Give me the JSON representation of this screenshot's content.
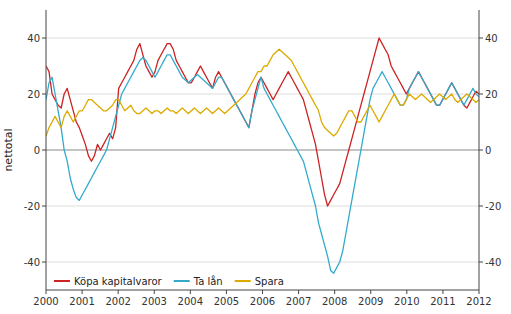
{
  "chart_data": {
    "type": "line",
    "ylabel": "nettotal",
    "xlim": [
      2000,
      2012
    ],
    "xticks": [
      2000,
      2001,
      2002,
      2003,
      2004,
      2005,
      2006,
      2007,
      2008,
      2009,
      2010,
      2011,
      2012
    ],
    "ylim": [
      -50,
      50
    ],
    "yticks": [
      -40,
      -20,
      0,
      20,
      40
    ],
    "y2lim": [
      -50,
      50
    ],
    "y2ticks": [
      -40,
      -20,
      0,
      20,
      40
    ],
    "grid": true,
    "legend": "lower left",
    "x": [
      2000,
      2000.0839,
      2000.1678,
      2000.2517,
      2000.3357,
      2000.4196,
      2000.5035,
      2000.5874,
      2000.6713,
      2000.7552,
      2000.8392,
      2000.9231,
      2001.007,
      2001.0909,
      2001.1748,
      2001.2587,
      2001.3427,
      2001.4266,
      2001.5105,
      2001.5944,
      2001.6783,
      2001.7622,
      2001.8462,
      2001.9301,
      2002.014,
      2002.0979,
      2002.1818,
      2002.2657,
      2002.3497,
      2002.4336,
      2002.5175,
      2002.6014,
      2002.6853,
      2002.7692,
      2002.8531,
      2002.9371,
      2003.021,
      2003.1049,
      2003.1888,
      2003.2727,
      2003.3566,
      2003.4406,
      2003.5245,
      2003.6084,
      2003.6923,
      2003.7762,
      2003.8601,
      2003.9441,
      2004.028,
      2004.1119,
      2004.1958,
      2004.2797,
      2004.3636,
      2004.4476,
      2004.5315,
      2004.6154,
      2004.6993,
      2004.7832,
      2004.8671,
      2004.951,
      2005.035,
      2005.1189,
      2005.2028,
      2005.2867,
      2005.3706,
      2005.4545,
      2005.5385,
      2005.6224,
      2005.7063,
      2005.7902,
      2005.8741,
      2005.958,
      2006.042,
      2006.1259,
      2006.2098,
      2006.2937,
      2006.3776,
      2006.4615,
      2006.5455,
      2006.6294,
      2006.7133,
      2006.7972,
      2006.8811,
      2006.965,
      2007.049,
      2007.1329,
      2007.2168,
      2007.3007,
      2007.3846,
      2007.4685,
      2007.5524,
      2007.6364,
      2007.7203,
      2007.8042,
      2007.8881,
      2007.972,
      2008.0559,
      2008.1399,
      2008.2238,
      2008.3077,
      2008.3916,
      2008.4755,
      2008.5594,
      2008.6434,
      2008.7273,
      2008.8112,
      2008.8951,
      2008.979,
      2009.0629,
      2009.1469,
      2009.2308,
      2009.3147,
      2009.3986,
      2009.4825,
      2009.5664,
      2009.6503,
      2009.7343,
      2009.8182,
      2009.9021,
      2009.986,
      2010.0699,
      2010.1538,
      2010.2378,
      2010.3217,
      2010.4056,
      2010.4895,
      2010.5734,
      2010.6573,
      2010.7413,
      2010.8252,
      2010.9091,
      2010.993,
      2011.0769,
      2011.1608,
      2011.2448,
      2011.3287,
      2011.4126,
      2011.4965,
      2011.5804,
      2011.6643,
      2011.7483,
      2011.8322,
      2011.9161,
      2012
    ],
    "series": [
      {
        "name": "Köpa kapitalvaror",
        "color": "#cc2222",
        "values": [
          30,
          28,
          20,
          18,
          16,
          15,
          20,
          22,
          18,
          14,
          10,
          8,
          5,
          2,
          -2,
          -4,
          -2,
          2,
          0,
          2,
          4,
          6,
          4,
          8,
          22,
          24,
          26,
          28,
          30,
          32,
          36,
          38,
          34,
          30,
          28,
          26,
          28,
          32,
          34,
          36,
          38,
          38,
          36,
          32,
          30,
          28,
          26,
          24,
          24,
          26,
          28,
          30,
          28,
          26,
          24,
          22,
          26,
          28,
          26,
          24,
          22,
          20,
          18,
          16,
          14,
          12,
          10,
          8,
          14,
          20,
          24,
          26,
          24,
          22,
          20,
          18,
          20,
          22,
          24,
          26,
          28,
          26,
          24,
          22,
          20,
          18,
          14,
          10,
          6,
          2,
          -4,
          -10,
          -16,
          -20,
          -18,
          -16,
          -14,
          -12,
          -8,
          -4,
          0,
          4,
          8,
          12,
          16,
          20,
          24,
          28,
          32,
          36,
          40,
          38,
          36,
          34,
          30,
          28,
          26,
          24,
          22,
          20,
          22,
          24,
          26,
          28,
          26,
          24,
          22,
          20,
          18,
          16,
          16,
          18,
          20,
          22,
          24,
          22,
          20,
          18,
          16,
          15,
          17,
          19,
          21,
          20
        ]
      },
      {
        "name": "Ta lån",
        "color": "#33aacc",
        "values": [
          18,
          24,
          26,
          20,
          14,
          8,
          0,
          -4,
          -10,
          -14,
          -17,
          -18,
          -16,
          -14,
          -12,
          -10,
          -8,
          -6,
          -4,
          -2,
          0,
          4,
          8,
          12,
          16,
          20,
          22,
          24,
          26,
          28,
          30,
          32,
          33,
          32,
          30,
          28,
          26,
          28,
          30,
          32,
          34,
          34,
          32,
          30,
          28,
          26,
          25,
          24,
          25,
          26,
          27,
          26,
          25,
          24,
          23,
          22,
          24,
          26,
          26,
          24,
          22,
          20,
          18,
          16,
          14,
          12,
          10,
          8,
          14,
          18,
          22,
          26,
          22,
          20,
          18,
          16,
          14,
          12,
          10,
          8,
          6,
          4,
          2,
          0,
          -2,
          -4,
          -8,
          -12,
          -16,
          -20,
          -26,
          -30,
          -34,
          -38,
          -43,
          -44,
          -42,
          -40,
          -36,
          -30,
          -24,
          -18,
          -12,
          -6,
          0,
          6,
          12,
          18,
          22,
          24,
          26,
          28,
          26,
          24,
          22,
          20,
          18,
          16,
          16,
          18,
          22,
          24,
          26,
          28,
          26,
          24,
          22,
          20,
          18,
          16,
          16,
          18,
          20,
          22,
          24,
          22,
          20,
          18,
          16,
          18,
          20,
          22,
          20,
          19
        ]
      },
      {
        "name": "Spara",
        "color": "#ddaa00",
        "values": [
          5,
          8,
          10,
          12,
          10,
          8,
          12,
          14,
          12,
          10,
          12,
          14,
          14,
          16,
          18,
          18,
          17,
          16,
          15,
          14,
          14,
          15,
          16,
          18,
          18,
          16,
          14,
          15,
          16,
          14,
          13,
          13,
          14,
          15,
          14,
          13,
          14,
          14,
          13,
          14,
          15,
          14,
          14,
          13,
          14,
          15,
          14,
          13,
          14,
          15,
          14,
          13,
          14,
          15,
          14,
          13,
          14,
          15,
          14,
          13,
          14,
          15,
          16,
          17,
          18,
          19,
          20,
          22,
          24,
          26,
          28,
          28,
          30,
          30,
          32,
          34,
          35,
          36,
          35,
          34,
          33,
          32,
          30,
          28,
          26,
          24,
          22,
          20,
          18,
          16,
          14,
          10,
          8,
          7,
          6,
          5,
          6,
          8,
          10,
          12,
          14,
          14,
          12,
          10,
          10,
          12,
          14,
          16,
          14,
          12,
          10,
          12,
          14,
          16,
          18,
          20,
          18,
          16,
          16,
          18,
          20,
          19,
          18,
          19,
          20,
          19,
          18,
          17,
          18,
          19,
          20,
          19,
          18,
          19,
          20,
          18,
          17,
          18,
          19,
          20,
          19,
          18,
          17,
          18
        ]
      }
    ]
  }
}
